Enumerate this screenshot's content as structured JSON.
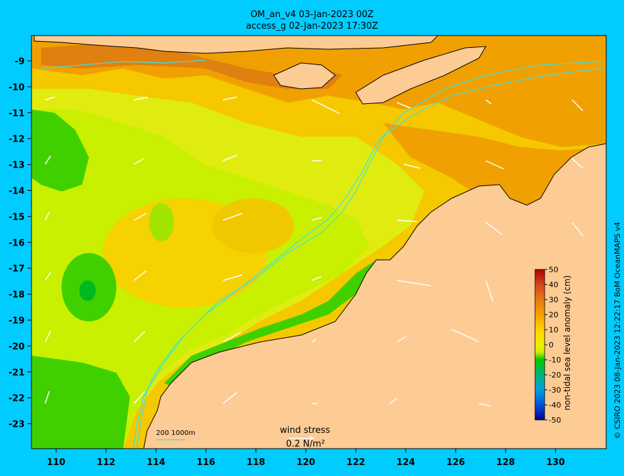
{
  "header": {
    "line1": "OM_an_v4  03-Jan-2023 00Z",
    "line2": "access_g 02-Jan-2023 17:30Z"
  },
  "axes": {
    "lon_ticks": [
      "110",
      "112",
      "114",
      "116",
      "118",
      "120",
      "122",
      "124",
      "126",
      "128",
      "130"
    ],
    "lat_ticks": [
      "-9",
      "-10",
      "-11",
      "-12",
      "-13",
      "-14",
      "-15",
      "-16",
      "-17",
      "-18",
      "-19",
      "-20",
      "-21",
      "-22",
      "-23"
    ]
  },
  "colorbar": {
    "label": "non-tidal sea level anomaly (cm)",
    "ticks": [
      "50",
      "40",
      "30",
      "20",
      "10",
      "0",
      "-10",
      "-20",
      "-30",
      "-40",
      "-50"
    ],
    "colors": [
      "#b40000",
      "#d2461e",
      "#e67814",
      "#f5a000",
      "#ffd200",
      "#f0f000",
      "#c8f000",
      "#78dc00",
      "#00c800",
      "#00b478",
      "#00a0b4",
      "#0078dc",
      "#0050dc",
      "#0028b4",
      "#000096"
    ]
  },
  "legend": {
    "isobath": "200  1000m",
    "wind_title": "wind stress",
    "wind_value": "0.2 N/m²"
  },
  "credit": "© CSIRO 2023   08-Jan-2023 12:22:17 BoM OceanMAPS v4",
  "colors": {
    "background": "#00ccff",
    "land": "#fdcb94",
    "isobath": "#40e0e0"
  }
}
